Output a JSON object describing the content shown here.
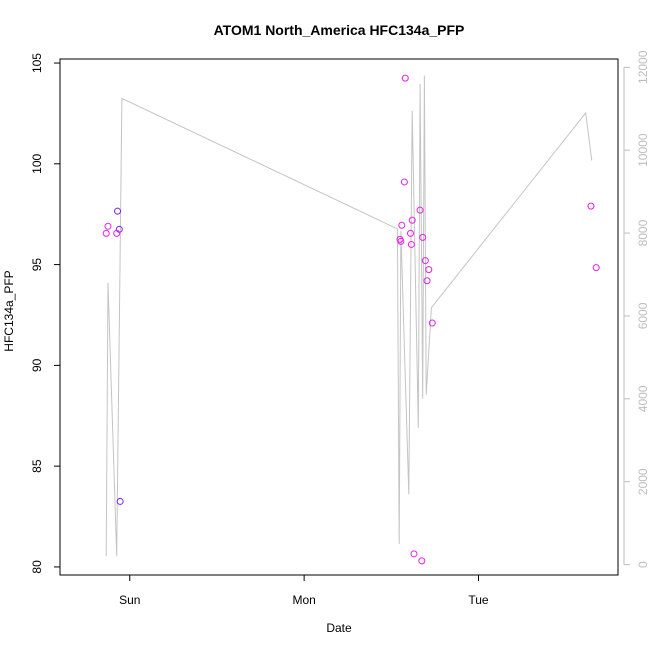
{
  "chart_data": {
    "type": "scatter",
    "title": "ATOM1 North_America HFC134a_PFP",
    "xlabel": "Date",
    "ylabel": "HFC134a_PFP",
    "x_ticks": [
      {
        "x": 1.0,
        "label": "Sun"
      },
      {
        "x": 2.0,
        "label": "Mon"
      },
      {
        "x": 3.0,
        "label": "Tue"
      }
    ],
    "x_range": [
      0.6,
      3.8
    ],
    "left_axis": {
      "ylim": [
        79.6,
        105.2
      ],
      "ticks": [
        80,
        85,
        90,
        95,
        100,
        105
      ]
    },
    "right_axis": {
      "ylim": [
        -250,
        12200
      ],
      "ticks": [
        0,
        2000,
        4000,
        6000,
        8000,
        10000,
        12000
      ],
      "color": "#bdbdbd"
    },
    "scatter_series": [
      {
        "color": "#7a1fe6",
        "points": [
          {
            "x": 0.93,
            "y": 97.65
          },
          {
            "x": 0.94,
            "y": 96.75
          },
          {
            "x": 0.945,
            "y": 83.25
          }
        ]
      },
      {
        "color": "#e81ee8",
        "points": [
          {
            "x": 0.865,
            "y": 96.55
          },
          {
            "x": 0.875,
            "y": 96.9
          },
          {
            "x": 0.925,
            "y": 96.55
          },
          {
            "x": 2.55,
            "y": 96.25
          },
          {
            "x": 2.555,
            "y": 96.15
          },
          {
            "x": 2.56,
            "y": 96.95
          },
          {
            "x": 2.575,
            "y": 99.1
          },
          {
            "x": 2.58,
            "y": 104.25
          },
          {
            "x": 2.61,
            "y": 96.55
          },
          {
            "x": 2.615,
            "y": 96.0
          },
          {
            "x": 2.62,
            "y": 97.2
          },
          {
            "x": 2.63,
            "y": 80.65
          },
          {
            "x": 2.665,
            "y": 97.7
          },
          {
            "x": 2.675,
            "y": 80.3
          },
          {
            "x": 2.68,
            "y": 96.35
          },
          {
            "x": 2.695,
            "y": 95.2
          },
          {
            "x": 2.705,
            "y": 94.2
          },
          {
            "x": 2.715,
            "y": 94.75
          },
          {
            "x": 2.735,
            "y": 92.1
          },
          {
            "x": 3.645,
            "y": 97.9
          },
          {
            "x": 3.675,
            "y": 94.85
          }
        ]
      }
    ],
    "line_series": {
      "color": "#c4c4c4",
      "axis": "right",
      "points": [
        {
          "x": 0.865,
          "y": 200
        },
        {
          "x": 0.875,
          "y": 6800
        },
        {
          "x": 0.925,
          "y": 200
        },
        {
          "x": 0.955,
          "y": 11250
        },
        {
          "x": 2.535,
          "y": 8100
        },
        {
          "x": 2.545,
          "y": 500
        },
        {
          "x": 2.555,
          "y": 8050
        },
        {
          "x": 2.6,
          "y": 1700
        },
        {
          "x": 2.62,
          "y": 10950
        },
        {
          "x": 2.655,
          "y": 3300
        },
        {
          "x": 2.665,
          "y": 11600
        },
        {
          "x": 2.68,
          "y": 4000
        },
        {
          "x": 2.69,
          "y": 11800
        },
        {
          "x": 2.7,
          "y": 4100
        },
        {
          "x": 2.73,
          "y": 6200
        },
        {
          "x": 3.615,
          "y": 10900
        },
        {
          "x": 3.65,
          "y": 9750
        }
      ]
    }
  }
}
